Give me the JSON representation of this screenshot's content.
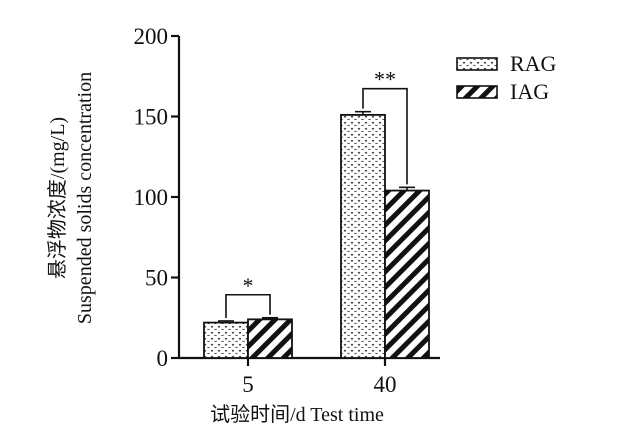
{
  "chart_data": {
    "type": "bar",
    "categories": [
      "5",
      "40"
    ],
    "series": [
      {
        "name": "RAG",
        "values": [
          22,
          151
        ],
        "errors": [
          1,
          2
        ]
      },
      {
        "name": "IAG",
        "values": [
          24,
          104
        ],
        "errors": [
          1,
          2
        ]
      }
    ],
    "significance": [
      "*",
      "**"
    ],
    "xlabel": "试验时间/d Test time",
    "ylabel": [
      "悬浮物浓度/(mg/L)",
      "Suspended solids concentration"
    ],
    "ylim": [
      0,
      200
    ],
    "yticks": [
      "0",
      "50",
      "100",
      "150",
      "200"
    ],
    "legend_position": "top-right",
    "grid": false
  }
}
